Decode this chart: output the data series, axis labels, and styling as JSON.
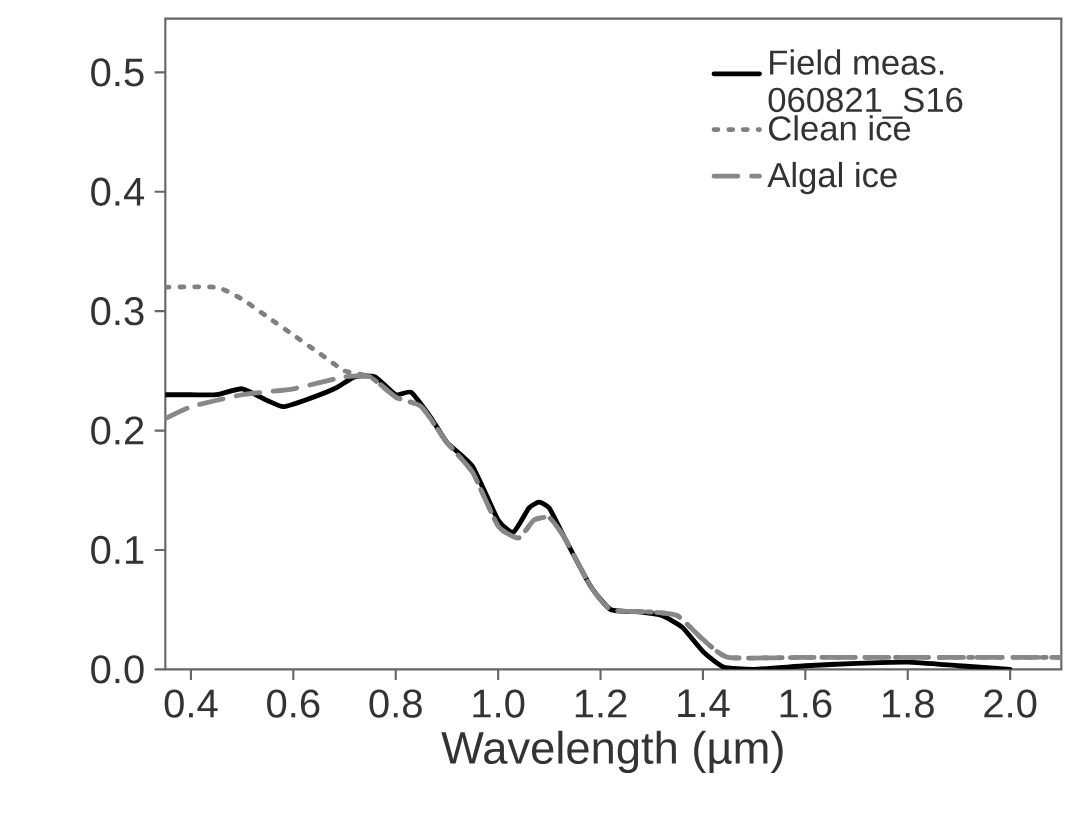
{
  "chart_data": {
    "type": "line",
    "xlabel": "Wavelength (µm)",
    "xlim": [
      0.35,
      2.1
    ],
    "ylim": [
      0,
      0.545
    ],
    "xticks": [
      0.4,
      0.6,
      0.8,
      {
        "value": 1.0,
        "label": "1.0"
      },
      1.2,
      1.4,
      1.6,
      1.8,
      {
        "value": 2.0,
        "label": "2.0"
      }
    ],
    "yticks": [
      {
        "value": 0.0,
        "label": "0.0"
      },
      0.1,
      0.2,
      0.3,
      0.4,
      0.5
    ],
    "grid": false,
    "legend": "top right",
    "series": [
      {
        "name": "Field meas. 060821_S16",
        "color": "#000000",
        "line_style": "solid",
        "x": [
          0.35,
          0.4,
          0.45,
          0.5,
          0.55,
          0.58,
          0.62,
          0.68,
          0.72,
          0.76,
          0.8,
          0.83,
          0.87,
          0.9,
          0.95,
          1.0,
          1.03,
          1.06,
          1.08,
          1.1,
          1.13,
          1.18,
          1.22,
          1.28,
          1.32,
          1.36,
          1.4,
          1.44,
          1.5,
          1.6,
          1.7,
          1.8,
          1.9,
          2.0
        ],
        "values": [
          0.23,
          0.23,
          0.23,
          0.235,
          0.225,
          0.22,
          0.225,
          0.235,
          0.245,
          0.245,
          0.23,
          0.232,
          0.21,
          0.19,
          0.17,
          0.125,
          0.115,
          0.135,
          0.14,
          0.135,
          0.11,
          0.07,
          0.05,
          0.048,
          0.045,
          0.035,
          0.015,
          0.002,
          0.0,
          0.003,
          0.005,
          0.006,
          0.003,
          0.0
        ]
      },
      {
        "name": "Clean ice",
        "color": "#808080",
        "line_style": "dotted",
        "x": [
          0.35,
          0.45,
          0.5,
          0.55,
          0.6,
          0.65,
          0.7,
          0.75,
          0.8,
          0.85,
          0.9,
          0.95,
          1.0,
          1.04,
          1.07,
          1.1,
          1.13,
          1.18,
          1.22,
          1.3,
          1.35,
          1.4,
          1.45,
          1.6,
          1.8,
          2.1
        ],
        "values": [
          0.32,
          0.32,
          0.31,
          0.295,
          0.28,
          0.265,
          0.25,
          0.245,
          0.228,
          0.22,
          0.19,
          0.165,
          0.12,
          0.11,
          0.125,
          0.127,
          0.11,
          0.07,
          0.05,
          0.048,
          0.045,
          0.025,
          0.01,
          0.01,
          0.01,
          0.01
        ]
      },
      {
        "name": "Algal ice",
        "color": "#888888",
        "line_style": "dashed",
        "x": [
          0.35,
          0.4,
          0.5,
          0.6,
          0.7,
          0.75,
          0.8,
          0.85,
          0.9,
          0.95,
          1.0,
          1.04,
          1.07,
          1.1,
          1.13,
          1.18,
          1.22,
          1.3,
          1.35,
          1.4,
          1.45,
          1.6,
          1.8,
          2.0,
          2.1
        ],
        "values": [
          0.21,
          0.22,
          0.23,
          0.235,
          0.245,
          0.245,
          0.228,
          0.22,
          0.19,
          0.165,
          0.12,
          0.11,
          0.125,
          0.127,
          0.11,
          0.07,
          0.05,
          0.048,
          0.045,
          0.025,
          0.01,
          0.01,
          0.01,
          0.01,
          0.01
        ]
      }
    ]
  }
}
